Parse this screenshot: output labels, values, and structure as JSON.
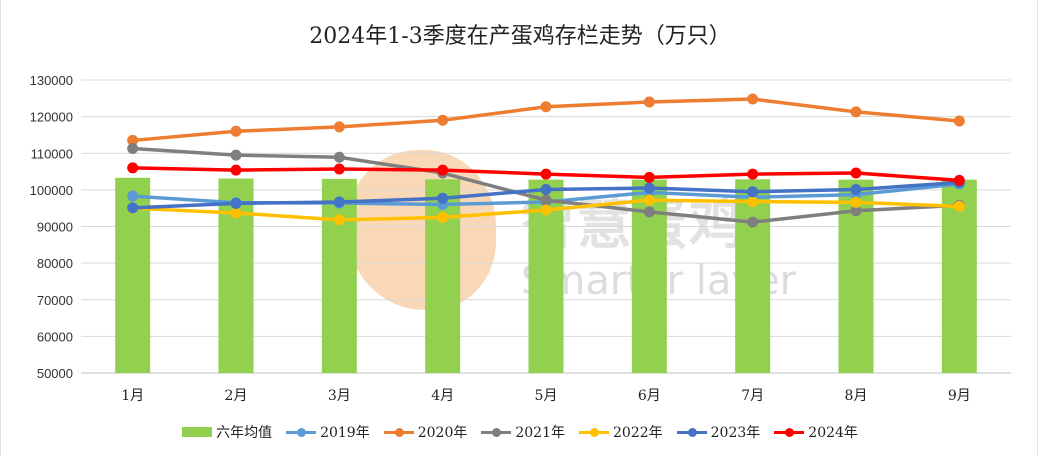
{
  "chart_data": {
    "type": "bar",
    "title": "2024年1-3季度在产蛋鸡存栏走势（万只）",
    "categories": [
      "1月",
      "2月",
      "3月",
      "4月",
      "5月",
      "6月",
      "7月",
      "8月",
      "9月"
    ],
    "ylim": [
      50000,
      130000
    ],
    "yticks": [
      50000,
      60000,
      70000,
      80000,
      90000,
      100000,
      110000,
      120000,
      130000
    ],
    "grid": true,
    "legend_position": "bottom",
    "bar_series": {
      "name": "六年均值",
      "color": "#92d050",
      "values": [
        103300,
        103100,
        103000,
        102900,
        102800,
        102800,
        102900,
        102800,
        102800
      ]
    },
    "series": [
      {
        "name": "2019年",
        "color": "#5b9bd5",
        "values": [
          98300,
          96500,
          96400,
          96000,
          96700,
          99300,
          98000,
          98700,
          101600
        ]
      },
      {
        "name": "2020年",
        "color": "#ed7d31",
        "values": [
          113500,
          116000,
          117200,
          119000,
          122700,
          124000,
          124800,
          121300,
          118800
        ]
      },
      {
        "name": "2021年",
        "color": "#7f7f7f",
        "values": [
          111300,
          109500,
          108900,
          104600,
          97200,
          94000,
          91200,
          94300,
          95800
        ]
      },
      {
        "name": "2022年",
        "color": "#ffc000",
        "values": [
          95000,
          93700,
          91800,
          92500,
          94500,
          97200,
          96800,
          96600,
          95500
        ]
      },
      {
        "name": "2023年",
        "color": "#4472c4",
        "values": [
          95100,
          96300,
          96700,
          97700,
          100100,
          100500,
          99500,
          100100,
          102000
        ]
      },
      {
        "name": "2024年",
        "color": "#ff0000",
        "values": [
          106000,
          105400,
          105700,
          105400,
          104300,
          103400,
          104300,
          104600,
          102600
        ]
      }
    ]
  },
  "watermark": {
    "cn_text": "智慧蛋鸡",
    "en_text": "Smarter layer"
  }
}
